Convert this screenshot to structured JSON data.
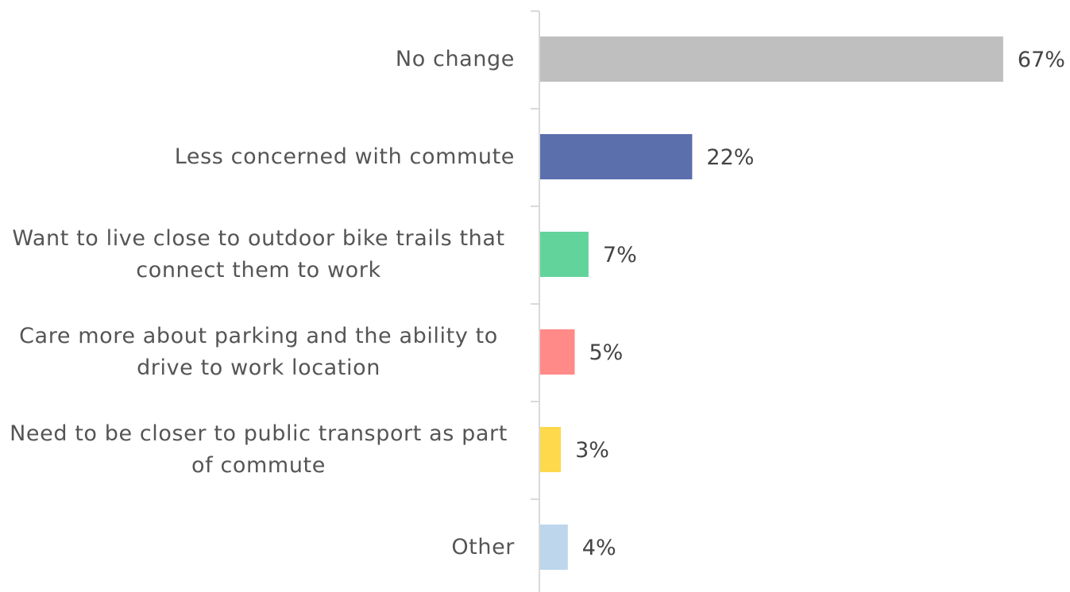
{
  "chart_data": {
    "type": "bar",
    "orientation": "horizontal",
    "categories": [
      "No change",
      "Less concerned with commute",
      "Want to live close to outdoor bike trails that connect them to work",
      "Care more about parking and the ability to drive to work location",
      "Need to be closer to public transport as part of commute",
      "Other"
    ],
    "values": [
      67,
      22,
      7,
      5,
      3,
      4
    ],
    "value_labels": [
      "67%",
      "22%",
      "7%",
      "5%",
      "3%",
      "4%"
    ],
    "colors": [
      "#bfbfbf",
      "#5b6fad",
      "#62d39b",
      "#ff8a87",
      "#fdd94b",
      "#bdd6ec"
    ]
  }
}
